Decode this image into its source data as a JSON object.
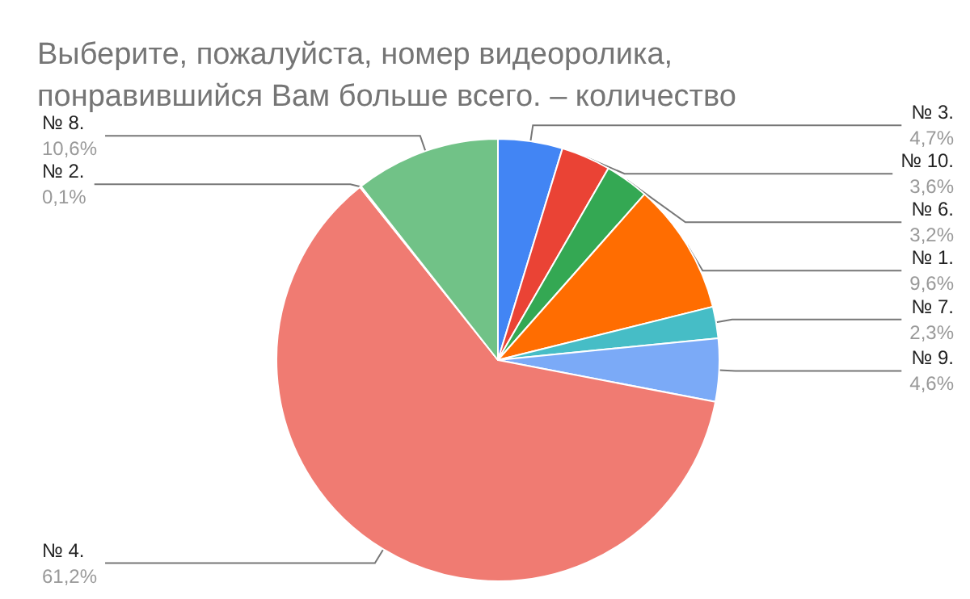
{
  "chart_data": {
    "type": "pie",
    "title": "Выберите, пожалуйста, номер видеоролика,\nпонравившийся Вам больше всего. – количество",
    "categories": [
      "№ 3.",
      "№ 10.",
      "№ 6.",
      "№ 1.",
      "№ 7.",
      "№ 9.",
      "№ 4.",
      "№ 2.",
      "№ 8."
    ],
    "values": [
      4.7,
      3.6,
      3.2,
      9.6,
      2.3,
      4.6,
      61.2,
      0.1,
      10.6
    ],
    "value_labels": [
      "4,7%",
      "3,6%",
      "3,2%",
      "9,6%",
      "2,3%",
      "4,6%",
      "61,2%",
      "0,1%",
      "10,6%"
    ],
    "colors": [
      "#4285f4",
      "#ea4335",
      "#34a853",
      "#ff6d01",
      "#46bdc6",
      "#7baaf7",
      "#f07b72",
      "#fcd04f",
      "#71c287"
    ],
    "legend": false
  }
}
